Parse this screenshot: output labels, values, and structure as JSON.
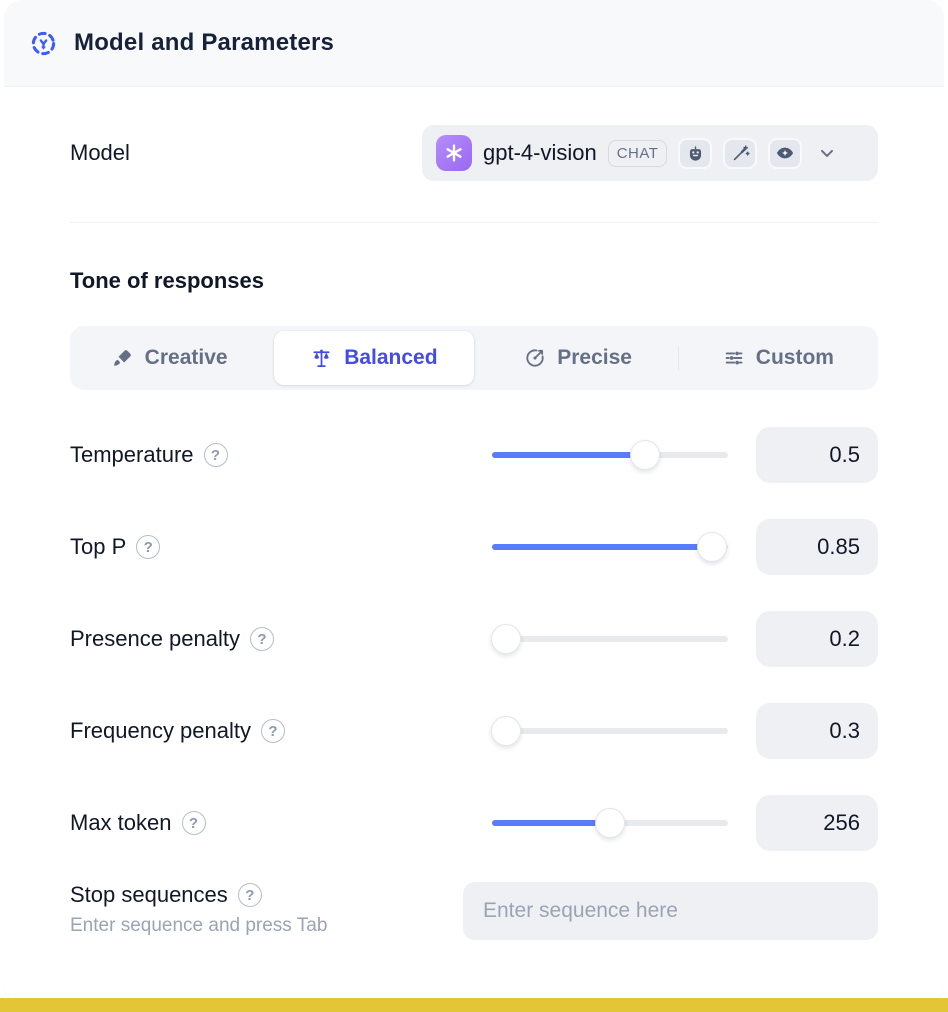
{
  "header": {
    "title": "Model and Parameters"
  },
  "model": {
    "label": "Model",
    "name": "gpt-4-vision",
    "type_badge": "CHAT",
    "provider_icon": "openai-logo",
    "capability_icons": [
      "robot-icon",
      "magic-wand-icon",
      "vision-eye-icon"
    ]
  },
  "tone": {
    "heading": "Tone of responses",
    "tabs": [
      {
        "label": "Creative",
        "icon": "paintbrush-icon",
        "active": false
      },
      {
        "label": "Balanced",
        "icon": "balance-scale-icon",
        "active": true
      },
      {
        "label": "Precise",
        "icon": "target-icon",
        "active": false
      },
      {
        "label": "Custom",
        "icon": "sliders-icon",
        "active": false
      }
    ]
  },
  "parameters": [
    {
      "label": "Temperature",
      "value": "0.5",
      "fill": 0.67
    },
    {
      "label": "Top P",
      "value": "0.85",
      "fill": 0.99
    },
    {
      "label": "Presence penalty",
      "value": "0.2",
      "fill": 0.0
    },
    {
      "label": "Frequency penalty",
      "value": "0.3",
      "fill": 0.0
    },
    {
      "label": "Max token",
      "value": "256",
      "fill": 0.5
    }
  ],
  "stop_sequences": {
    "label": "Stop sequences",
    "hint": "Enter sequence and press Tab",
    "placeholder": "Enter sequence here"
  },
  "ui": {
    "help_glyph": "?"
  },
  "colors": {
    "accent_slider": "#5b7cfa",
    "accent_tab_active": "#444ce7",
    "header_bg": "#f8f9fb",
    "control_bg": "#eef0f4",
    "provider_purple": "#9a68f2",
    "bottom_canvas": "#e2c638"
  }
}
